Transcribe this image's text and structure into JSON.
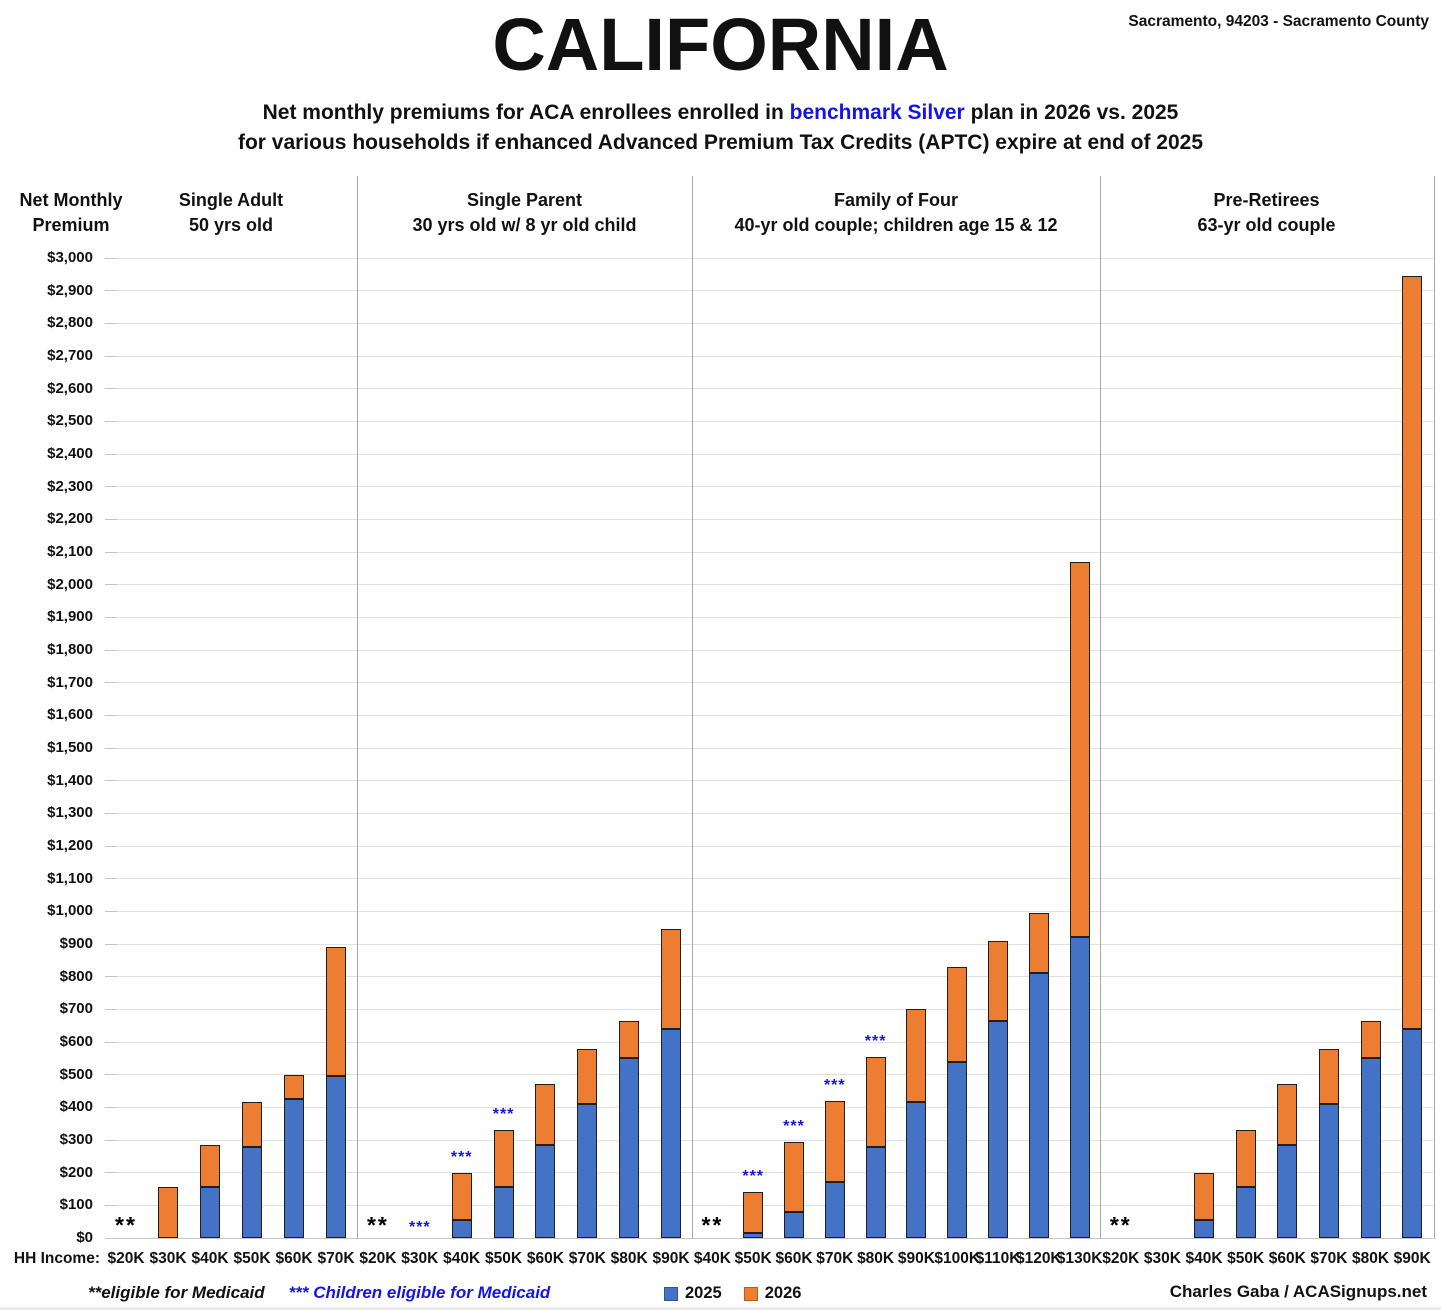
{
  "header": {
    "title": "CALIFORNIA",
    "location": "Sacramento, 94203 - Sacramento County",
    "subtitle_line1_pre": "Net monthly premiums for ACA enrollees enrolled in ",
    "subtitle_highlight": "benchmark Silver",
    "subtitle_line1_post": " plan in 2026 vs. 2025",
    "subtitle_line2": "for various households if enhanced Advanced Premium Tax Credits (APTC) expire at end of 2025"
  },
  "y_axis": {
    "label_line1": "Net Monthly",
    "label_line2": "Premium",
    "tick_prefix": "$"
  },
  "x_axis": {
    "label": "HH Income:"
  },
  "legend": [
    {
      "label": "2025",
      "color": "#4472C4",
      "border": "#2E5597"
    },
    {
      "label": "2026",
      "color": "#ED7D31",
      "border": "#C55A11"
    }
  ],
  "footnotes": [
    {
      "text": "**eligible for Medicaid",
      "color": "#111111"
    },
    {
      "text": "*** Children eligible for Medicaid",
      "color": "#1414E8"
    }
  ],
  "credit": "Charles Gaba / ACASignups.net",
  "colors": {
    "bar_2025": "#4472C4",
    "bar_2026": "#ED7D31",
    "highlight_blue": "#1414E8",
    "bar_border": "#1F1F1F"
  },
  "chart_data": {
    "type": "bar",
    "stacked": true,
    "title": "CALIFORNIA",
    "subtitle": "Net monthly premiums for ACA enrollees enrolled in benchmark Silver plan in 2026 vs. 2025 for various households if enhanced Advanced Premium Tax Credits (APTC) expire at end of 2025",
    "ylabel": "Net Monthly Premium",
    "xlabel": "HH Income",
    "ylim": [
      0,
      3000
    ],
    "ytick_step": 100,
    "grid": true,
    "legend_position": "bottom",
    "series_names": [
      "2025",
      "2026"
    ],
    "marker_legend": {
      "**": "eligible for Medicaid",
      "***": "Children eligible for Medicaid"
    },
    "panels": [
      {
        "title_line1": "Single Adult",
        "title_line2": "50 yrs old",
        "categories": [
          "$20K",
          "$30K",
          "$40K",
          "$50K",
          "$60K",
          "$70K"
        ],
        "premium_2025": [
          null,
          0,
          155,
          280,
          425,
          495
        ],
        "premium_2026": [
          null,
          155,
          285,
          415,
          500,
          890
        ],
        "markers": [
          "**",
          null,
          null,
          null,
          null,
          null
        ]
      },
      {
        "title_line1": "Single Parent",
        "title_line2": "30 yrs old w/ 8 yr old child",
        "categories": [
          "$20K",
          "$30K",
          "$40K",
          "$50K",
          "$60K",
          "$70K",
          "$80K",
          "$90K"
        ],
        "premium_2025": [
          null,
          null,
          55,
          155,
          285,
          410,
          550,
          640
        ],
        "premium_2026": [
          null,
          null,
          200,
          330,
          470,
          580,
          665,
          945
        ],
        "markers": [
          "**",
          "***",
          "***",
          "***",
          null,
          null,
          null,
          null
        ]
      },
      {
        "title_line1": "Family of Four",
        "title_line2": "40-yr old couple; children age 15 & 12",
        "categories": [
          "$40K",
          "$50K",
          "$60K",
          "$70K",
          "$80K",
          "$90K",
          "$100K",
          "$110K",
          "$120K",
          "$130K"
        ],
        "premium_2025": [
          null,
          15,
          80,
          170,
          280,
          415,
          540,
          665,
          810,
          920
        ],
        "premium_2026": [
          null,
          140,
          295,
          420,
          555,
          700,
          830,
          910,
          995,
          2070
        ],
        "markers": [
          "**",
          "***",
          "***",
          "***",
          "***",
          null,
          null,
          null,
          null,
          null
        ]
      },
      {
        "title_line1": "Pre-Retirees",
        "title_line2": "63-yr old couple",
        "categories": [
          "$20K",
          "$30K",
          "$40K",
          "$50K",
          "$60K",
          "$70K",
          "$80K",
          "$90K"
        ],
        "premium_2025": [
          null,
          null,
          55,
          155,
          285,
          410,
          550,
          640
        ],
        "premium_2026": [
          null,
          null,
          200,
          330,
          470,
          580,
          665,
          2945
        ],
        "markers": [
          "**",
          null,
          null,
          null,
          null,
          null,
          null,
          null
        ]
      }
    ]
  }
}
